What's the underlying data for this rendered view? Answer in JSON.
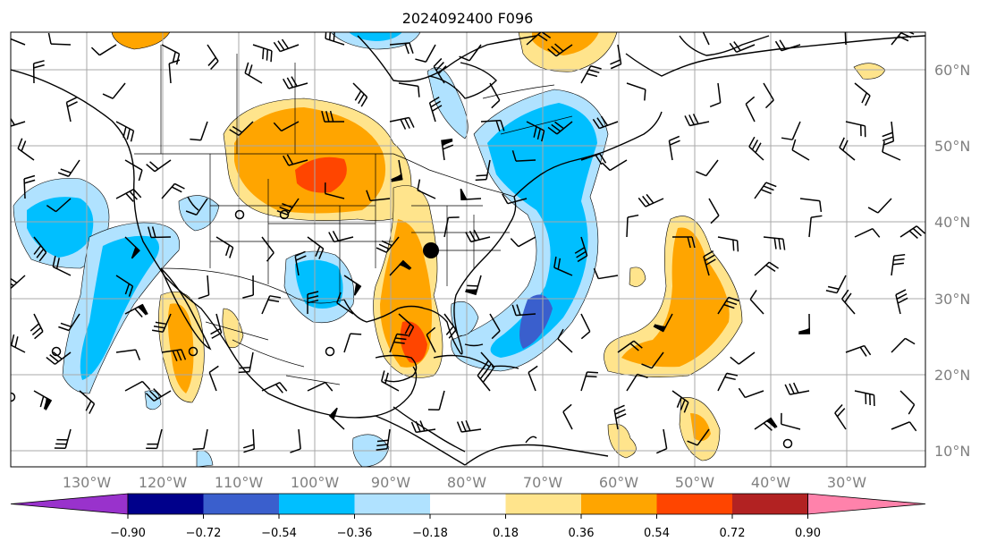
{
  "title": "2024092400 F096",
  "lon_labels": [
    "130°W",
    "120°W",
    "110°W",
    "100°W",
    "90°W",
    "80°W",
    "70°W",
    "60°W",
    "50°W",
    "40°W",
    "30°W"
  ],
  "lat_labels": [
    "60°N",
    "50°N",
    "40°N",
    "30°N",
    "20°N",
    "10°N"
  ],
  "colorbar": {
    "ticks": [
      "−0.90",
      "−0.72",
      "−0.54",
      "−0.36",
      "−0.18",
      "0.18",
      "0.36",
      "0.54",
      "0.72",
      "0.90"
    ],
    "colors": [
      "#9932cc",
      "#00008b",
      "#3a5fcd",
      "#00bfff",
      "#b0e2ff",
      "#ffffff",
      "#ffe48c",
      "#ffa500",
      "#ff4500",
      "#b22222",
      "#ff82ab"
    ]
  },
  "styles": {
    "grid_color": "#a9a9a9",
    "coast_color": "#000000",
    "label_color": "#808080"
  }
}
